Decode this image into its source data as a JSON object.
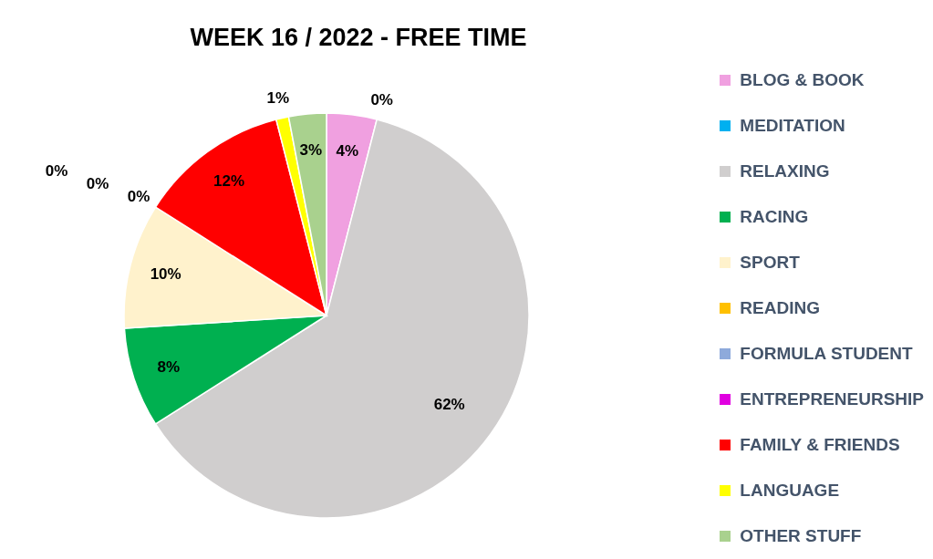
{
  "chart_data": {
    "type": "pie",
    "title": "WEEK 16 / 2022 - FREE TIME",
    "categories": [
      "BLOG & BOOK",
      "MEDITATION",
      "RELAXING",
      "RACING",
      "SPORT",
      "READING",
      "FORMULA STUDENT",
      "ENTREPRENEURSHIP",
      "FAMILY & FRIENDS",
      "LANGUAGE",
      "OTHER STUFF"
    ],
    "values": [
      4,
      0,
      62,
      8,
      10,
      0,
      0,
      0,
      12,
      1,
      3
    ],
    "colors": [
      "#f0a0e0",
      "#00b0f0",
      "#d0cece",
      "#00b050",
      "#fff2cc",
      "#ffc000",
      "#8eaadb",
      "#e000e0",
      "#ff0000",
      "#ffff00",
      "#a9d18e"
    ],
    "value_labels": [
      "4%",
      "0%",
      "62%",
      "8%",
      "10%",
      "0%",
      "0%",
      "0%",
      "12%",
      "1%",
      "3%"
    ],
    "legend": "right"
  }
}
